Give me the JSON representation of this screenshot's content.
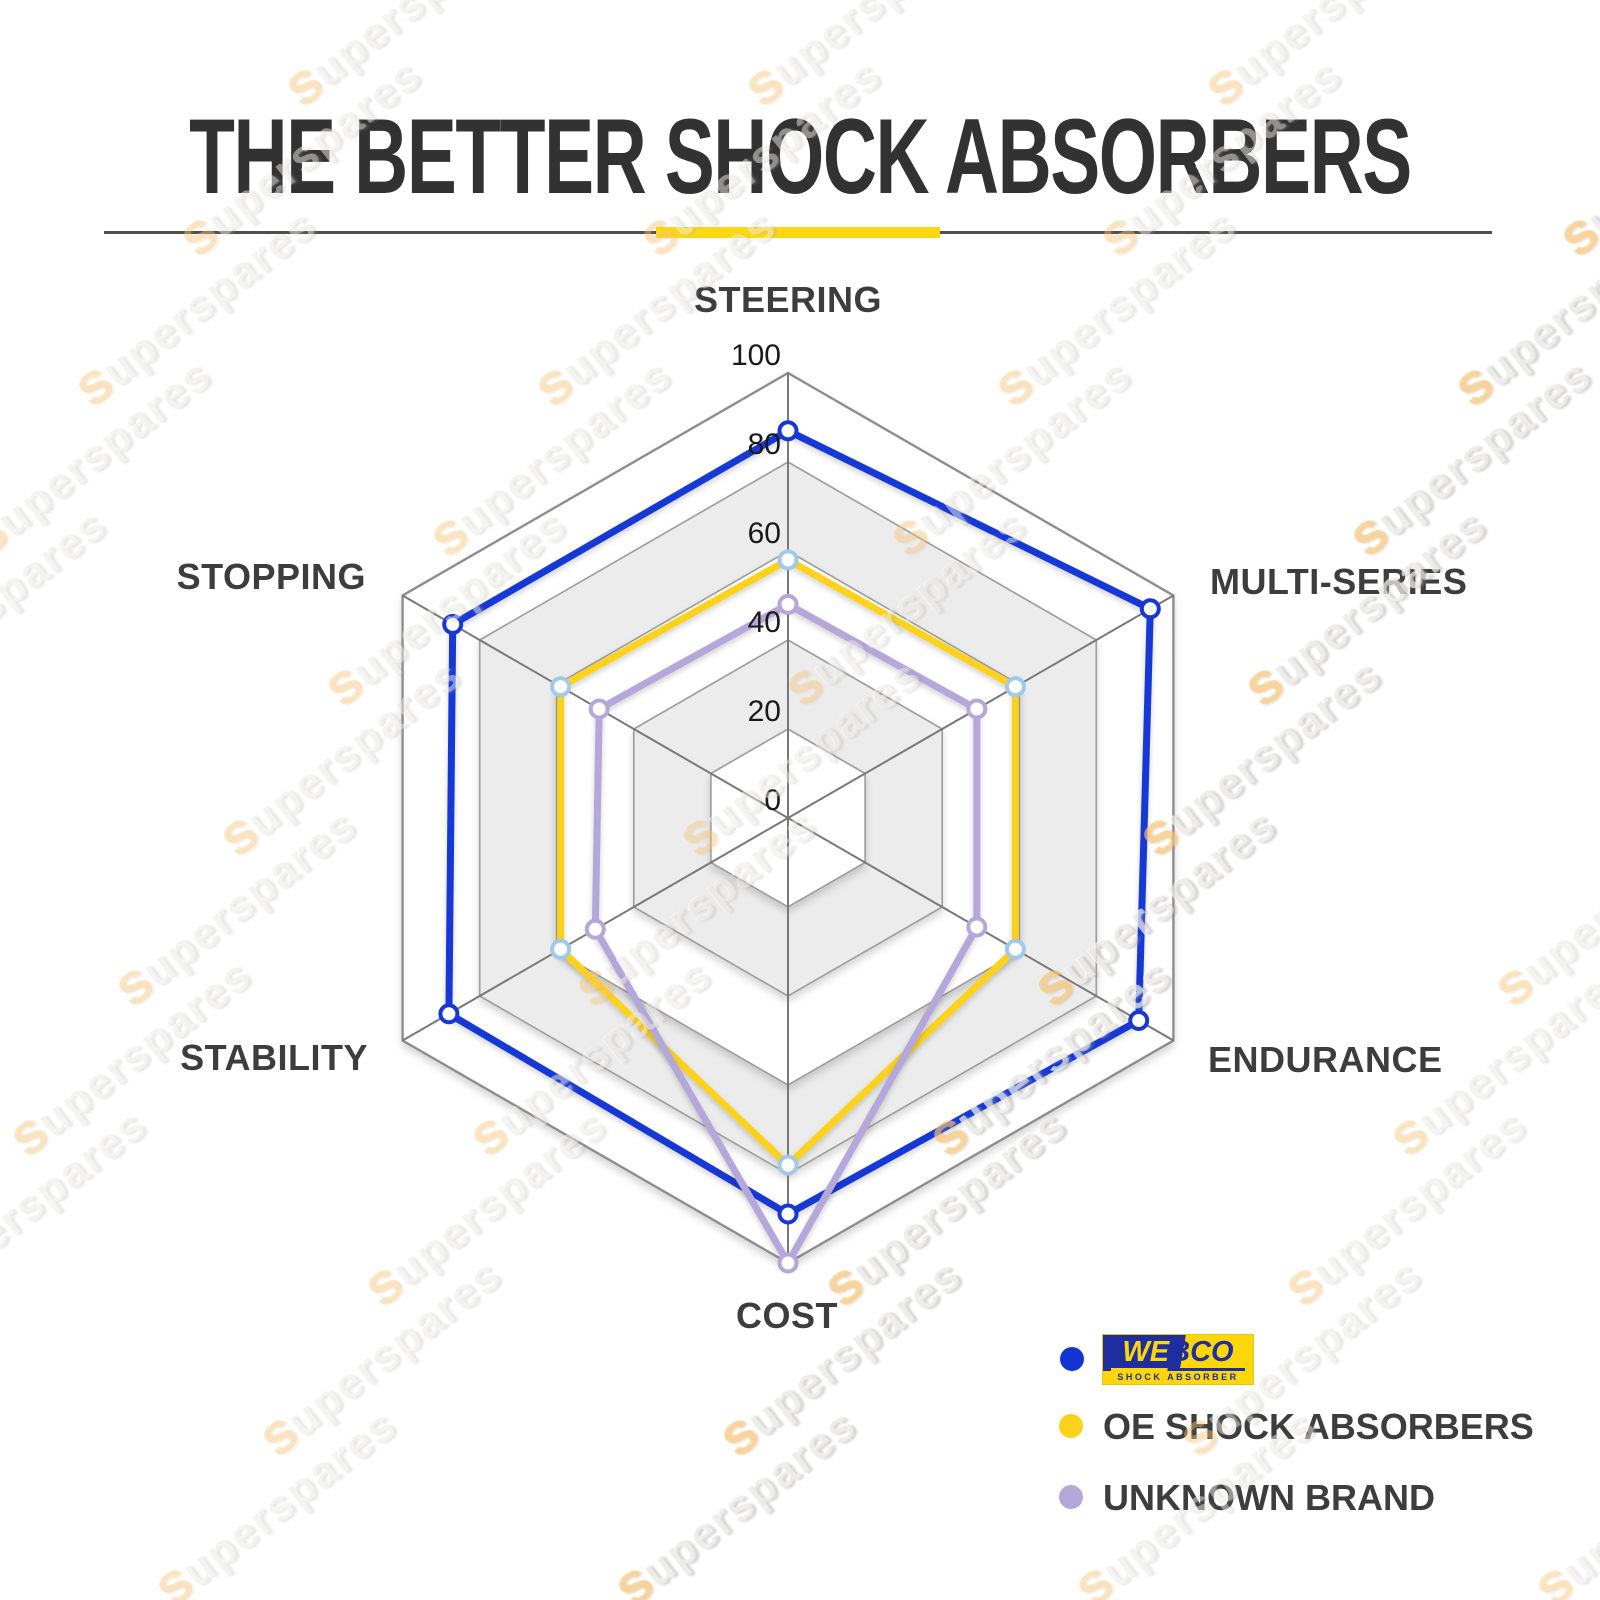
{
  "page": {
    "title": "THE BETTER SHOCK ABSORBERS"
  },
  "watermark": {
    "text": "superspares"
  },
  "divider": {
    "line_color": "#4f4f4f",
    "accent_color": "#fed712"
  },
  "chart_data": {
    "type": "radar",
    "title": "THE BETTER SHOCK ABSORBERS",
    "axes": [
      "STEERING",
      "MULTI-SERIES",
      "ENDURANCE",
      "COST",
      "STABILITY",
      "STOPPING"
    ],
    "ticks": [
      0,
      20,
      40,
      60,
      80,
      100
    ],
    "rmax": 100,
    "grid": {
      "band_colors": [
        "#ffffff",
        "#ececec"
      ],
      "ring_line_color": "#9c9c9c",
      "outer_line_color": "#8d8d8d",
      "spoke_color": "#787878"
    },
    "series": [
      {
        "name": "WEBCO",
        "color": "#1838d4",
        "marker_stroke": "#1838d4",
        "values": [
          87,
          94,
          91,
          89,
          88,
          87
        ]
      },
      {
        "name": "OE SHOCK ABSORBERS",
        "color": "#fcd21f",
        "marker_stroke": "#a3c9e9",
        "values": [
          58,
          59,
          59,
          78,
          59,
          59
        ]
      },
      {
        "name": "UNKNOWN BRAND",
        "color": "#b4a7d9",
        "marker_stroke": "#b4a7d9",
        "values": [
          48,
          49,
          49,
          100,
          50,
          49
        ]
      }
    ]
  },
  "legend": {
    "logo": {
      "word_left": "WE",
      "word_right": "BCO",
      "subtext": "SHOCK ABSORBER",
      "blue": "#1e2d9f",
      "yellow": "#ffd60a"
    },
    "items": [
      {
        "label": "WEBCO",
        "dot_color": "#1434d2"
      },
      {
        "label": "OE SHOCK ABSORBERS",
        "dot_color": "#fcd11d"
      },
      {
        "label": "UNKNOWN BRAND",
        "dot_color": "#b4a7d9"
      }
    ]
  }
}
